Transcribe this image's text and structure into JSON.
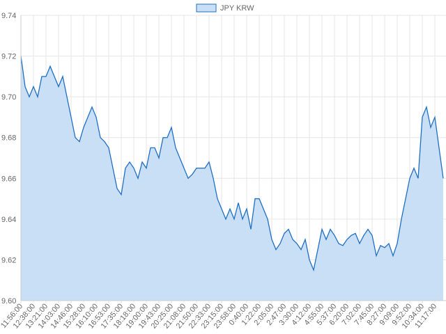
{
  "chart_data": {
    "type": "line",
    "legend": "JPY KRW",
    "categories": [
      "11:56:00",
      null,
      null,
      "12:38:00",
      null,
      null,
      "13:21:00",
      null,
      null,
      "14:03:00",
      null,
      null,
      "14:46:00",
      null,
      null,
      "15:28:00",
      null,
      null,
      "16:10:00",
      null,
      null,
      "16:53:00",
      null,
      null,
      "17:35:00",
      null,
      null,
      "18:18:00",
      null,
      null,
      "19:00:00",
      null,
      null,
      "19:43:00",
      null,
      null,
      "20:25:00",
      null,
      null,
      "21:08:00",
      null,
      null,
      "21:50:00",
      null,
      null,
      "22:33:00",
      null,
      null,
      "23:15:00",
      null,
      null,
      "23:58:00",
      null,
      null,
      "0:40:00",
      null,
      null,
      "1:22:00",
      null,
      null,
      "2:05:00",
      null,
      null,
      "2:47:00",
      null,
      null,
      "3:30:00",
      null,
      null,
      "4:12:00",
      null,
      null,
      "4:55:00",
      null,
      null,
      "5:37:00",
      null,
      null,
      "6:20:00",
      null,
      null,
      "7:02:00",
      null,
      null,
      "7:45:00",
      null,
      null,
      "8:27:00",
      null,
      null,
      "9:09:00",
      null,
      null,
      "9:52:00",
      null,
      null,
      "10:34:00",
      null,
      null,
      "11:17:00",
      null,
      null
    ],
    "series": [
      {
        "name": "JPY KRW",
        "color": "#1f6fc5",
        "fill": "#c9dff5",
        "values": [
          9.72,
          9.705,
          9.7,
          9.705,
          9.7,
          9.71,
          9.71,
          9.715,
          9.71,
          9.705,
          9.71,
          9.7,
          9.69,
          9.68,
          9.678,
          9.685,
          9.69,
          9.695,
          9.69,
          9.68,
          9.678,
          9.675,
          9.665,
          9.655,
          9.652,
          9.665,
          9.668,
          9.665,
          9.66,
          9.668,
          9.665,
          9.675,
          9.675,
          9.67,
          9.68,
          9.68,
          9.685,
          9.675,
          9.67,
          9.665,
          9.66,
          9.662,
          9.665,
          9.665,
          9.665,
          9.668,
          9.66,
          9.65,
          9.645,
          9.64,
          9.645,
          9.64,
          9.648,
          9.64,
          9.645,
          9.635,
          9.65,
          9.65,
          9.645,
          9.64,
          9.63,
          9.625,
          9.628,
          9.633,
          9.635,
          9.63,
          9.628,
          9.625,
          9.63,
          9.62,
          9.615,
          9.625,
          9.635,
          9.63,
          9.635,
          9.632,
          9.628,
          9.627,
          9.63,
          9.632,
          9.633,
          9.628,
          9.632,
          9.635,
          9.632,
          9.622,
          9.627,
          9.626,
          9.628,
          9.622,
          9.628,
          9.64,
          9.65,
          9.66,
          9.665,
          9.66,
          9.69,
          9.695,
          9.685,
          9.69,
          9.675,
          9.66
        ]
      }
    ],
    "ylim": [
      9.6,
      9.74
    ],
    "yticks": [
      {
        "value": 9.6,
        "label": "9.60"
      },
      9.62,
      9.64,
      9.66,
      9.68,
      {
        "value": 9.7,
        "label": "9.70"
      },
      9.72,
      9.74
    ],
    "grid": true
  }
}
